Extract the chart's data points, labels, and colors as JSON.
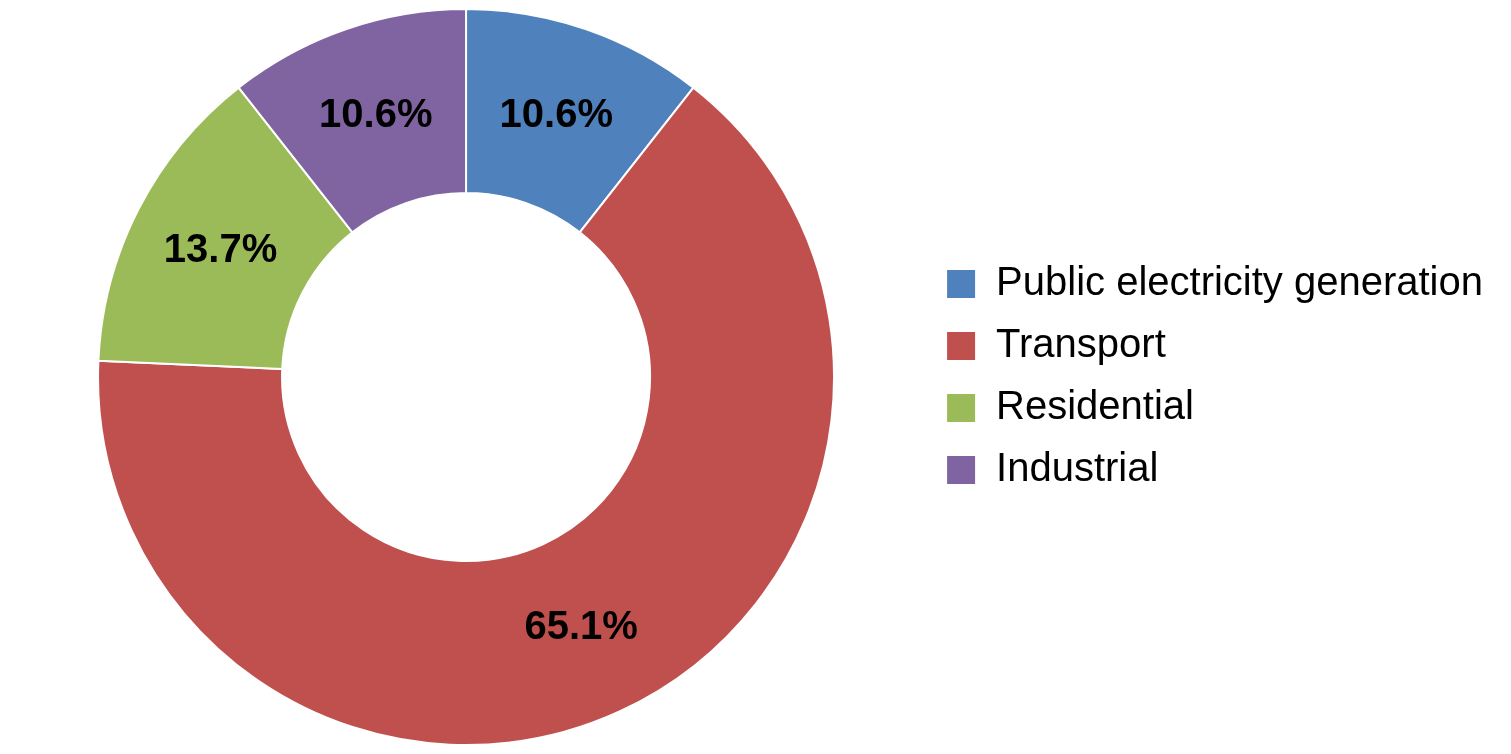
{
  "chart_data": {
    "type": "donut",
    "categories": [
      "Public electricity generation",
      "Transport",
      "Residential",
      "Industrial"
    ],
    "values": [
      10.6,
      65.1,
      13.7,
      10.6
    ],
    "colors": [
      "#4f81bd",
      "#c0504d",
      "#9bbb59",
      "#8064a2"
    ],
    "value_labels": [
      "10.6%",
      "65.1%",
      "13.7%",
      "10.6%"
    ],
    "legend": "right"
  }
}
